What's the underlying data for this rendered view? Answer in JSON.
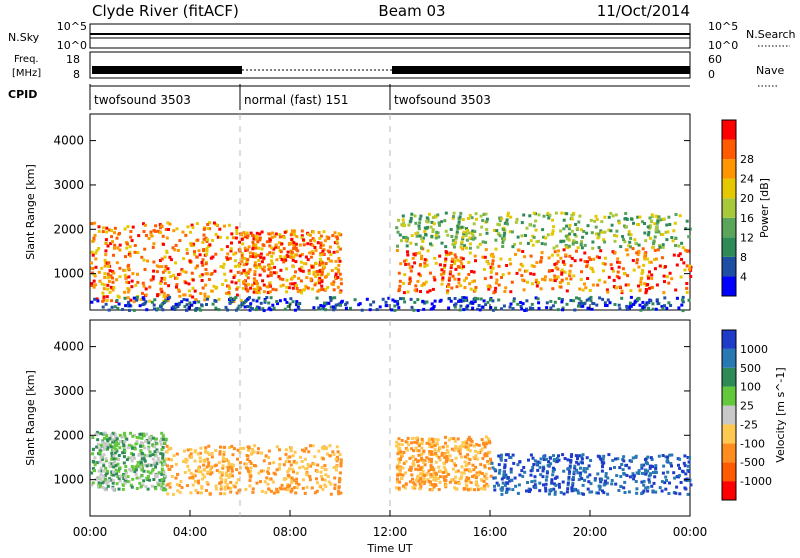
{
  "header": {
    "station": "Clyde River (fitACF)",
    "beam": "Beam 03",
    "date": "11/Oct/2014"
  },
  "status_panels": {
    "nsky_label": "N.Sky",
    "nsky_ticks": [
      "10^5",
      "10^0"
    ],
    "nsearch_label": "N.Search",
    "freq_label_line1": "Freq.",
    "freq_label_line2": "[MHz]",
    "freq_ticks": [
      "18",
      "8"
    ],
    "nave_label": "Nave",
    "nave_ticks": [
      "60",
      "0"
    ],
    "cpid_label": "CPID",
    "cpid_segments": [
      {
        "label": "twofsound 3503",
        "start_hour": 0,
        "end_hour": 6
      },
      {
        "label": "normal (fast) 151",
        "start_hour": 6,
        "end_hour": 12
      },
      {
        "label": "twofsound 3503",
        "start_hour": 12,
        "end_hour": 24
      }
    ]
  },
  "chart_data": [
    {
      "type": "heatmap",
      "name": "Power",
      "xlabel": "Time UT",
      "ylabel": "Slant Range [km]",
      "x_ticks": [
        "00:00",
        "04:00",
        "08:00",
        "12:00",
        "16:00",
        "20:00",
        "00:00"
      ],
      "xlim_hours": [
        0,
        24
      ],
      "ylim": [
        180,
        4600
      ],
      "y_ticks": [
        1000,
        2000,
        3000,
        4000
      ],
      "colorbar": {
        "label": "Power [dB]",
        "ticks": [
          "4",
          "8",
          "12",
          "16",
          "20",
          "24",
          "28"
        ],
        "range": [
          0,
          30
        ],
        "colors": [
          "#0000ff",
          "#1e4fa5",
          "#2e8b57",
          "#5aa55a",
          "#a8c83c",
          "#e6c800",
          "#ff9600",
          "#ff5a00",
          "#ff0000"
        ]
      },
      "regions": [
        {
          "t0": 0.0,
          "t1": 6.0,
          "r0": 400,
          "r1": 2200,
          "level": "high"
        },
        {
          "t0": 6.0,
          "t1": 10.0,
          "r0": 600,
          "r1": 2000,
          "level": "high"
        },
        {
          "t0": 12.2,
          "t1": 24.0,
          "r0": 600,
          "r1": 1600,
          "level": "high"
        },
        {
          "t0": 12.2,
          "t1": 24.0,
          "r0": 1600,
          "r1": 2400,
          "level": "medium"
        },
        {
          "t0": 0.0,
          "t1": 24.0,
          "r0": 200,
          "r1": 500,
          "level": "low"
        }
      ]
    },
    {
      "type": "heatmap",
      "name": "Velocity",
      "xlabel": "Time UT",
      "ylabel": "Slant Range [km]",
      "x_ticks": [
        "00:00",
        "04:00",
        "08:00",
        "12:00",
        "16:00",
        "20:00",
        "00:00"
      ],
      "xlim_hours": [
        0,
        24
      ],
      "ylim": [
        180,
        4600
      ],
      "y_ticks": [
        1000,
        2000,
        3000,
        4000
      ],
      "colorbar": {
        "label": "Velocity [m s^-1]",
        "ticks": [
          "1000",
          "500",
          "100",
          "25",
          "-25",
          "-100",
          "-500",
          "-1000"
        ],
        "colors": [
          "#1e3cc8",
          "#2878b4",
          "#2e8b57",
          "#64c83c",
          "#c8c8c8",
          "#ffc850",
          "#ff8c1e",
          "#ff5a00",
          "#ff0000"
        ]
      },
      "regions": [
        {
          "t0": 0.0,
          "t1": 3.0,
          "r0": 800,
          "r1": 2100,
          "level": "mixed-green"
        },
        {
          "t0": 3.0,
          "t1": 10.0,
          "r0": 700,
          "r1": 1800,
          "level": "orange"
        },
        {
          "t0": 12.2,
          "t1": 16.0,
          "r0": 800,
          "r1": 2000,
          "level": "orange"
        },
        {
          "t0": 16.0,
          "t1": 24.0,
          "r0": 700,
          "r1": 1600,
          "level": "blue"
        }
      ]
    }
  ]
}
